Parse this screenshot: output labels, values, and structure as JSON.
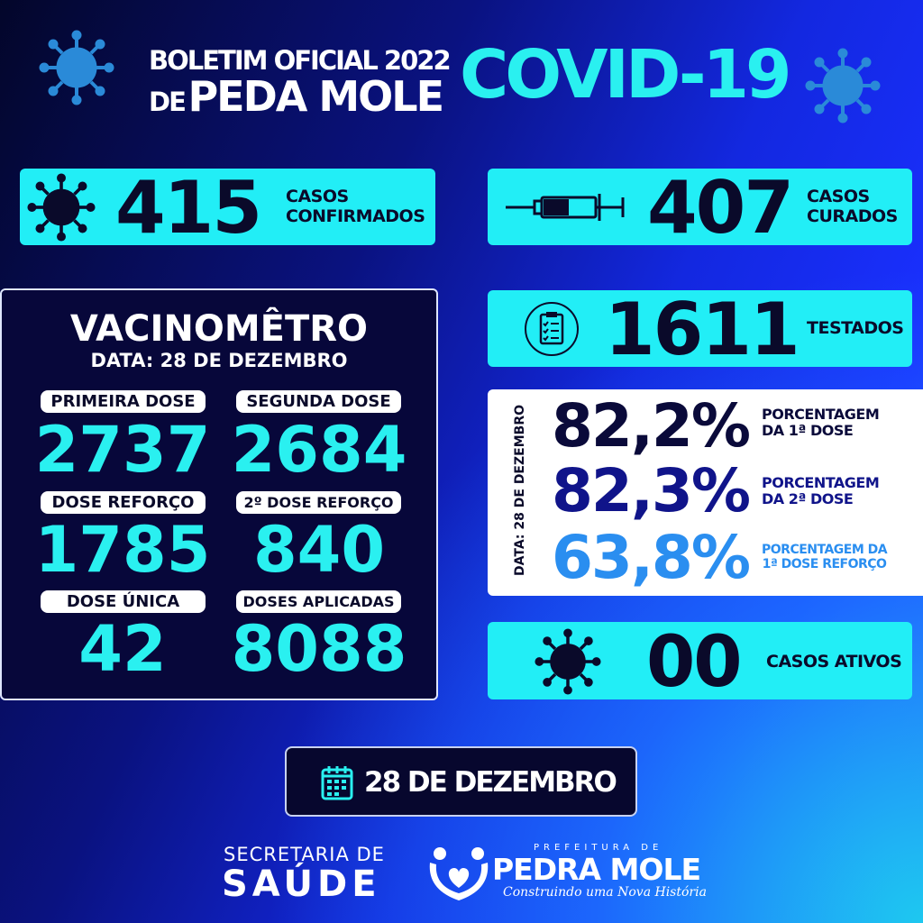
{
  "header": {
    "line1": "BOLETIM OFICIAL 2022",
    "line2_prefix": "DE",
    "line2": "PEDA MOLE",
    "covid": "COVID-19"
  },
  "cards": {
    "confirmed": {
      "value": "415",
      "label1": "CASOS",
      "label2": "CONFIRMADOS",
      "icon": "virus-icon"
    },
    "cured": {
      "value": "407",
      "label1": "CASOS",
      "label2": "CURADOS",
      "icon": "syringe-icon"
    },
    "tested": {
      "value": "1611",
      "label": "TESTADOS",
      "icon": "clipboard-icon"
    },
    "active": {
      "value": "00",
      "label": "CASOS ATIVOS",
      "icon": "virus-icon"
    }
  },
  "vacinometro": {
    "title": "VACINOMÊTRO",
    "date": "DATA: 28 DE DEZEMBRO",
    "items": [
      {
        "label": "PRIMEIRA DOSE",
        "value": "2737"
      },
      {
        "label": "SEGUNDA DOSE",
        "value": "2684"
      },
      {
        "label": "DOSE REFORÇO",
        "value": "1785"
      },
      {
        "label": "2º DOSE REFORÇO",
        "value": "840"
      },
      {
        "label": "DOSE ÚNICA",
        "value": "42"
      },
      {
        "label": "DOSES APLICADAS",
        "value": "8088"
      }
    ]
  },
  "percentages": {
    "date": "DATA: 28 DE DEZEMBRO",
    "items": [
      {
        "value": "82,2%",
        "label1": "PORCENTAGEM",
        "label2": "DA 1ª DOSE",
        "color": "#0a0a3a"
      },
      {
        "value": "82,3%",
        "label1": "PORCENTAGEM",
        "label2": "DA 2ª DOSE",
        "color": "#10148a"
      },
      {
        "value": "63,8%",
        "label1": "PORCENTAGEM DA",
        "label2": "1ª DOSE REFORÇO",
        "color": "#2a8ef0"
      }
    ]
  },
  "date_banner": {
    "text": "28 DE DEZEMBRO",
    "icon": "calendar-icon"
  },
  "footer": {
    "secretaria": "SECRETARIA DE",
    "saude": "SAÚDE",
    "logo_top": "PREFEITURA DE",
    "logo_name": "PEDRA MOLE",
    "logo_slogan": "Construindo uma Nova História"
  },
  "colors": {
    "cyan": "#22eef6",
    "navy": "#07073a",
    "accent_blue": "#2a8ef0"
  }
}
